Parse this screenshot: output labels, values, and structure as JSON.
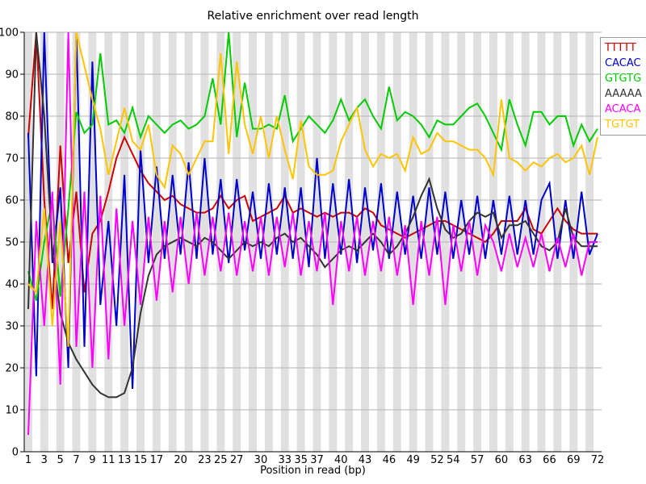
{
  "title": "Relative enrichment over read length",
  "chart_data": {
    "type": "line",
    "title": "Relative enrichment over read length",
    "xlabel": "Position in read (bp)",
    "ylabel": "",
    "ylim": [
      0,
      100
    ],
    "n_positions": 72,
    "x_tick_labels": [
      "1",
      "3",
      "5",
      "7",
      "9",
      "11",
      "13",
      "15",
      "17",
      "20",
      "23",
      "25",
      "27",
      "30",
      "33",
      "35",
      "37",
      "40",
      "43",
      "46",
      "49",
      "52",
      "54",
      "57",
      "60",
      "63",
      "66",
      "69",
      "72"
    ],
    "x_tick_positions": [
      1,
      3,
      5,
      7,
      9,
      11,
      13,
      15,
      17,
      20,
      23,
      25,
      27,
      30,
      33,
      35,
      37,
      40,
      43,
      46,
      49,
      52,
      54,
      57,
      60,
      63,
      66,
      69,
      72
    ],
    "y_ticks": [
      0,
      10,
      20,
      30,
      40,
      50,
      60,
      70,
      80,
      90,
      100
    ],
    "grid": true,
    "band_color": "#e0e0e0",
    "grid_color": "#b3b3b3",
    "axis_color": "#000000",
    "legend_position": "top-right",
    "series": [
      {
        "name": "TTTTT",
        "color": "#cc0000",
        "values": [
          75,
          100,
          60,
          34,
          73,
          45,
          62,
          38,
          52,
          55,
          62,
          70,
          75,
          71,
          67,
          64,
          62,
          60,
          61,
          59,
          58,
          57,
          57,
          58,
          61,
          58,
          60,
          61,
          55,
          56,
          57,
          58,
          61,
          57,
          58,
          57,
          56,
          57,
          56,
          57,
          57,
          56,
          58,
          57,
          54,
          53,
          52,
          51,
          52,
          53,
          54,
          55,
          55,
          54,
          53,
          52,
          51,
          50,
          52,
          55,
          55,
          55,
          58,
          53,
          52,
          55,
          58,
          55,
          53,
          52,
          52,
          52
        ]
      },
      {
        "name": "CACAC",
        "color": "#0000cc",
        "values": [
          76,
          18,
          100,
          45,
          63,
          20,
          100,
          25,
          93,
          35,
          55,
          30,
          66,
          15,
          72,
          45,
          68,
          46,
          66,
          47,
          69,
          46,
          70,
          47,
          65,
          45,
          65,
          48,
          62,
          46,
          64,
          47,
          63,
          46,
          63,
          44,
          70,
          46,
          64,
          47,
          65,
          45,
          63,
          48,
          64,
          46,
          62,
          47,
          61,
          46,
          63,
          47,
          62,
          46,
          60,
          47,
          61,
          46,
          60,
          47,
          61,
          47,
          60,
          47,
          60,
          64,
          46,
          60,
          46,
          62,
          47,
          52
        ]
      },
      {
        "name": "GTGTG",
        "color": "#00cc00",
        "values": [
          43,
          36,
          50,
          60,
          37,
          58,
          81,
          76,
          78,
          95,
          78,
          79,
          76,
          82,
          75,
          80,
          78,
          76,
          78,
          79,
          77,
          78,
          80,
          89,
          78,
          100,
          75,
          88,
          77,
          77,
          78,
          77,
          85,
          74,
          77,
          80,
          78,
          76,
          79,
          84,
          79,
          82,
          84,
          80,
          77,
          87,
          79,
          81,
          80,
          78,
          75,
          79,
          78,
          78,
          80,
          82,
          83,
          80,
          76,
          72,
          84,
          78,
          73,
          81,
          81,
          78,
          80,
          80,
          73,
          78,
          74,
          77
        ]
      },
      {
        "name": "AAAAA",
        "color": "#333333",
        "values": [
          34,
          100,
          80,
          48,
          33,
          26,
          22,
          19,
          16,
          14,
          13,
          13,
          14,
          20,
          33,
          42,
          47,
          49,
          50,
          51,
          50,
          49,
          51,
          50,
          48,
          46,
          48,
          50,
          49,
          50,
          49,
          51,
          52,
          50,
          51,
          49,
          47,
          44,
          46,
          48,
          49,
          48,
          50,
          52,
          50,
          47,
          49,
          52,
          56,
          61,
          65,
          58,
          53,
          51,
          52,
          55,
          57,
          56,
          57,
          51,
          54,
          54,
          55,
          52,
          49,
          48,
          50,
          58,
          51,
          49,
          49,
          49
        ]
      },
      {
        "name": "ACACA",
        "color": "#ff00ff",
        "values": [
          4,
          55,
          30,
          62,
          16,
          100,
          25,
          62,
          20,
          61,
          22,
          58,
          30,
          55,
          35,
          56,
          36,
          55,
          38,
          56,
          40,
          57,
          42,
          56,
          43,
          57,
          42,
          55,
          43,
          56,
          42,
          56,
          44,
          57,
          42,
          55,
          43,
          57,
          35,
          55,
          43,
          56,
          42,
          55,
          43,
          56,
          42,
          54,
          35,
          55,
          42,
          56,
          35,
          54,
          43,
          55,
          42,
          54,
          50,
          43,
          52,
          44,
          51,
          44,
          52,
          43,
          51,
          44,
          52,
          42,
          50,
          50
        ]
      },
      {
        "name": "TGTGT",
        "color": "#ffc400",
        "values": [
          40,
          38,
          58,
          30,
          55,
          25,
          100,
          92,
          84,
          77,
          66,
          74,
          82,
          74,
          72,
          78,
          66,
          63,
          73,
          71,
          66,
          70,
          74,
          74,
          95,
          71,
          93,
          78,
          71,
          80,
          70,
          80,
          72,
          65,
          79,
          68,
          66,
          66,
          67,
          74,
          78,
          82,
          72,
          68,
          71,
          70,
          71,
          67,
          75,
          71,
          72,
          76,
          74,
          74,
          73,
          72,
          72,
          70,
          66,
          84,
          70,
          69,
          67,
          69,
          68,
          70,
          71,
          69,
          70,
          73,
          66,
          75
        ]
      }
    ]
  }
}
